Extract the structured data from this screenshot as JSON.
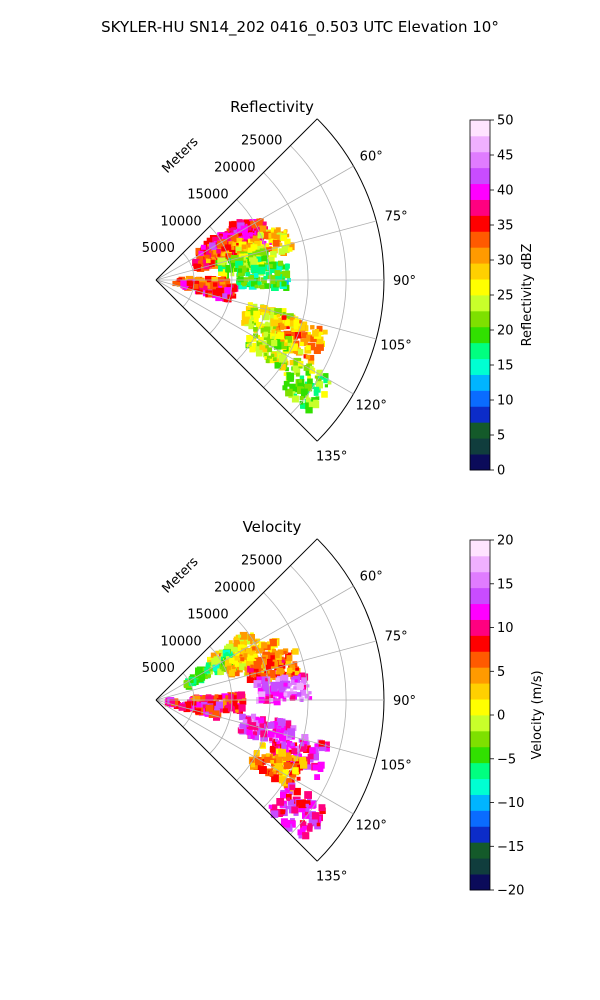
{
  "figure_title": "SKYLER-HU  SN14_202  0416_0.503 UTC Elevation 10°",
  "chart_data": [
    {
      "type": "heatmap",
      "projection": "polar-sector",
      "title": "Reflectivity",
      "radial_label": "Meters",
      "radial_ticks": [
        5000,
        10000,
        15000,
        20000,
        25000
      ],
      "radial_tick_labels": [
        "5000",
        "10000",
        "15000",
        "20000",
        "25000"
      ],
      "radial_max": 30000,
      "azimuth_range_deg": [
        45,
        135
      ],
      "angular_ticks": [
        60,
        75,
        90,
        105,
        120,
        135
      ],
      "angular_tick_labels": [
        "60°",
        "75°",
        "90°",
        "105°",
        "120°",
        "135°"
      ],
      "grid": true,
      "colorbar": {
        "label": "Reflectivity dBZ",
        "min": 0,
        "max": 50,
        "ticks": [
          0,
          5,
          10,
          15,
          20,
          25,
          30,
          35,
          40,
          45,
          50
        ],
        "tick_labels": [
          "0",
          "5",
          "10",
          "15",
          "20",
          "25",
          "30",
          "35",
          "40",
          "45",
          "50"
        ],
        "colors": [
          "#0b0b5a",
          "#103d3d",
          "#145a2a",
          "#0c2cc8",
          "#0a6cff",
          "#00b5ff",
          "#00ffd2",
          "#00ff80",
          "#31e000",
          "#7ee000",
          "#c8ff2a",
          "#ffff00",
          "#ffd000",
          "#ff9a00",
          "#ff5a00",
          "#ff0000",
          "#ff0080",
          "#ff00ff",
          "#c84cff",
          "#e07cff",
          "#f0b0ff",
          "#ffe4ff"
        ]
      },
      "cells": [
        {
          "az": 60,
          "r": 10000,
          "v": 35
        },
        {
          "az": 62,
          "r": 12000,
          "v": 38
        },
        {
          "az": 66,
          "r": 13000,
          "v": 36
        },
        {
          "az": 70,
          "r": 9000,
          "v": 33
        },
        {
          "az": 72,
          "r": 15000,
          "v": 28
        },
        {
          "az": 80,
          "r": 12000,
          "v": 22
        },
        {
          "az": 88,
          "r": 14000,
          "v": 18
        },
        {
          "az": 95,
          "r": 6000,
          "v": 32
        },
        {
          "az": 100,
          "r": 7000,
          "v": 37
        },
        {
          "az": 110,
          "r": 16000,
          "v": 25
        },
        {
          "az": 112,
          "r": 20000,
          "v": 30
        },
        {
          "az": 120,
          "r": 18000,
          "v": 24
        },
        {
          "az": 125,
          "r": 25000,
          "v": 21
        }
      ]
    },
    {
      "type": "heatmap",
      "projection": "polar-sector",
      "title": "Velocity",
      "radial_label": "Meters",
      "radial_ticks": [
        5000,
        10000,
        15000,
        20000,
        25000
      ],
      "radial_tick_labels": [
        "5000",
        "10000",
        "15000",
        "20000",
        "25000"
      ],
      "radial_max": 30000,
      "azimuth_range_deg": [
        45,
        135
      ],
      "angular_ticks": [
        60,
        75,
        90,
        105,
        120,
        135
      ],
      "angular_tick_labels": [
        "60°",
        "75°",
        "90°",
        "105°",
        "120°",
        "135°"
      ],
      "grid": true,
      "colorbar": {
        "label": "Velocity (m/s)",
        "min": -20,
        "max": 20,
        "ticks": [
          -20,
          -15,
          -10,
          -5,
          0,
          5,
          10,
          15,
          20
        ],
        "tick_labels": [
          "−20",
          "−15",
          "−10",
          "−5",
          "0",
          "5",
          "10",
          "15",
          "20"
        ],
        "colors": [
          "#0b0b5a",
          "#103d3d",
          "#145a2a",
          "#0c2cc8",
          "#0a6cff",
          "#00b5ff",
          "#00ffd2",
          "#00ff80",
          "#31e000",
          "#7ee000",
          "#c8ff2a",
          "#ffff00",
          "#ffd000",
          "#ff9a00",
          "#ff5a00",
          "#ff0000",
          "#ff0080",
          "#ff00ff",
          "#c84cff",
          "#e07cff",
          "#f0b0ff",
          "#ffe4ff"
        ]
      },
      "cells": [
        {
          "az": 58,
          "r": 12000,
          "v": 2
        },
        {
          "az": 62,
          "r": 8000,
          "v": -4
        },
        {
          "az": 68,
          "r": 14000,
          "v": 3
        },
        {
          "az": 75,
          "r": 16000,
          "v": 6
        },
        {
          "az": 85,
          "r": 17000,
          "v": 14
        },
        {
          "az": 92,
          "r": 8000,
          "v": 8
        },
        {
          "az": 100,
          "r": 5000,
          "v": 10
        },
        {
          "az": 105,
          "r": 15000,
          "v": 13
        },
        {
          "az": 110,
          "r": 20000,
          "v": 12
        },
        {
          "az": 118,
          "r": 18000,
          "v": 5
        },
        {
          "az": 128,
          "r": 24000,
          "v": 11
        }
      ]
    }
  ]
}
